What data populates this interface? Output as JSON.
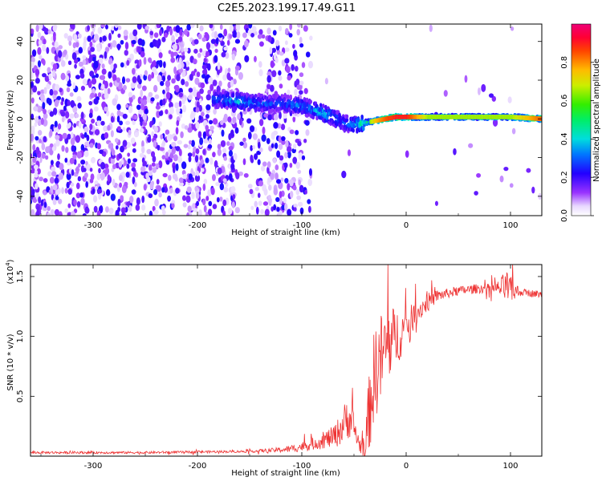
{
  "figure": {
    "title": "C2E5.2023.199.17.49.G11"
  },
  "chart_data": [
    {
      "type": "heatmap",
      "title": "C2E5.2023.199.17.49.G11",
      "xlabel": "Height of straight line (km)",
      "ylabel": "Frequency (Hz)",
      "xlim": [
        -360,
        130
      ],
      "ylim": [
        -50,
        49
      ],
      "xticks": [
        -300,
        -200,
        -100,
        0,
        100
      ],
      "yticks": [
        -40,
        -20,
        0,
        20,
        40
      ],
      "xtick_labels": [
        "-300",
        "-200",
        "-100",
        "0",
        "100"
      ],
      "ytick_labels": [
        "-40",
        "-20",
        "0",
        "20",
        "40"
      ],
      "colorbar": {
        "label": "Normalized spectral amplitude",
        "range": [
          0,
          1
        ],
        "ticks": [
          0.0,
          0.2,
          0.4,
          0.6,
          0.8
        ],
        "tick_labels": [
          "0.0",
          "0.2",
          "0.4",
          "0.6",
          "0.8"
        ],
        "colormap": "rainbow"
      },
      "ridge_line": {
        "x": [
          -180,
          -160,
          -140,
          -120,
          -100,
          -90,
          -80,
          -70,
          -60,
          -50,
          -40,
          -30,
          -20,
          -10,
          0,
          20,
          40,
          60,
          80,
          100,
          130
        ],
        "y": [
          10,
          9,
          8,
          8,
          7,
          5,
          3,
          1,
          -2,
          -3,
          -2,
          -1,
          0,
          1,
          1,
          1,
          1,
          1,
          1,
          1,
          0
        ],
        "amplitude": [
          0.3,
          0.4,
          0.3,
          0.3,
          0.35,
          0.35,
          0.4,
          0.35,
          0.3,
          0.35,
          0.5,
          0.7,
          0.8,
          0.85,
          0.85,
          0.6,
          0.6,
          0.6,
          0.6,
          0.6,
          0.8
        ]
      }
    },
    {
      "type": "line",
      "xlabel": "Height of straight line (km)",
      "ylabel": "SNR (10 * v/v)",
      "scale_label": "(x10",
      "scale_exp": "4",
      "xlim": [
        -360,
        130
      ],
      "ylim": [
        0,
        1.6
      ],
      "xticks": [
        -300,
        -200,
        -100,
        0,
        100
      ],
      "yticks": [
        0.5,
        1.0,
        1.5
      ],
      "xtick_labels": [
        "-300",
        "-200",
        "-100",
        "0",
        "100"
      ],
      "ytick_labels": [
        "0.5",
        "1.0",
        "1.5"
      ],
      "color": "#ee3333",
      "series": [
        {
          "name": "SNR",
          "x": [
            -360,
            -300,
            -250,
            -200,
            -150,
            -125,
            -110,
            -100,
            -90,
            -80,
            -70,
            -65,
            -60,
            -55,
            -50,
            -45,
            -40,
            -35,
            -30,
            -25,
            -20,
            -15,
            -10,
            -5,
            0,
            10,
            20,
            30,
            40,
            50,
            60,
            70,
            80,
            90,
            95,
            100,
            110,
            120,
            130
          ],
          "y": [
            0.03,
            0.03,
            0.03,
            0.035,
            0.04,
            0.05,
            0.06,
            0.08,
            0.1,
            0.13,
            0.16,
            0.2,
            0.27,
            0.33,
            0.24,
            0.1,
            0.06,
            0.4,
            0.7,
            0.8,
            0.9,
            0.95,
            1.0,
            1.02,
            1.08,
            1.2,
            1.28,
            1.34,
            1.36,
            1.38,
            1.39,
            1.4,
            1.4,
            1.4,
            1.42,
            1.38,
            1.37,
            1.36,
            1.35
          ],
          "noise": [
            0.01,
            0.01,
            0.01,
            0.01,
            0.01,
            0.02,
            0.03,
            0.04,
            0.05,
            0.07,
            0.09,
            0.12,
            0.16,
            0.18,
            0.14,
            0.06,
            0.1,
            0.35,
            0.4,
            0.4,
            0.35,
            0.3,
            0.25,
            0.2,
            0.15,
            0.1,
            0.08,
            0.05,
            0.04,
            0.04,
            0.04,
            0.04,
            0.04,
            0.07,
            0.15,
            0.12,
            0.03,
            0.03,
            0.03
          ]
        }
      ]
    }
  ]
}
